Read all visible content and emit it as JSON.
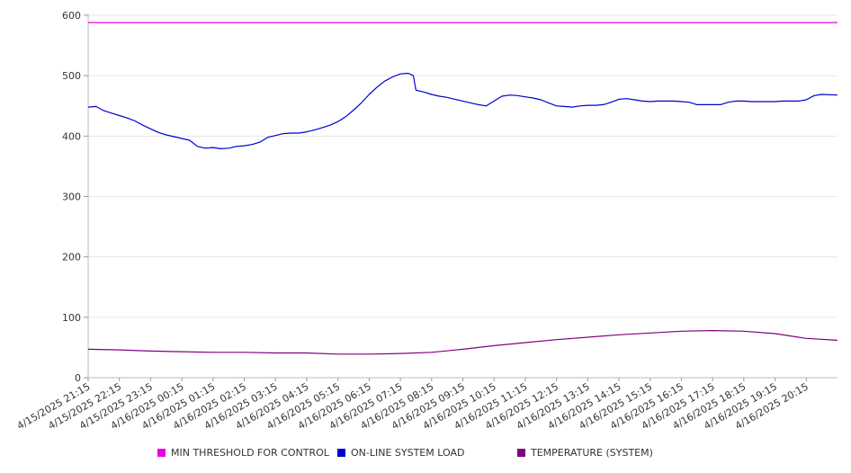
{
  "chart_data": {
    "type": "line",
    "title": "",
    "xlabel": "",
    "ylabel": "",
    "ylim": [
      0,
      600
    ],
    "y_ticks": [
      0,
      100,
      200,
      300,
      400,
      500,
      600
    ],
    "grid": true,
    "legend_position": "bottom",
    "x_tick_labels": [
      "4/15/2025 21:15",
      "4/15/2025 22:15",
      "4/15/2025 23:15",
      "4/16/2025 00:15",
      "4/16/2025 01:15",
      "4/16/2025 02:15",
      "4/16/2025 03:15",
      "4/16/2025 04:15",
      "4/16/2025 05:15",
      "4/16/2025 06:15",
      "4/16/2025 07:15",
      "4/16/2025 08:15",
      "4/16/2025 09:15",
      "4/16/2025 10:15",
      "4/16/2025 11:15",
      "4/16/2025 12:15",
      "4/16/2025 13:15",
      "4/16/2025 14:15",
      "4/16/2025 15:15",
      "4/16/2025 16:15",
      "4/16/2025 17:15",
      "4/16/2025 18:15",
      "4/16/2025 19:15",
      "4/16/2025 20:15"
    ],
    "x_start": "4/15/2025 21:15",
    "x_end": "4/16/2025 21:15",
    "series": [
      {
        "name": "MIN THRESHOLD FOR CONTROL",
        "color": "#e600e6",
        "points": [
          [
            "4/15/2025 21:15",
            588
          ],
          [
            "4/16/2025 21:15",
            588
          ]
        ]
      },
      {
        "name": "ON-LINE SYSTEM LOAD",
        "color": "#0000cc",
        "points": [
          [
            "4/15/2025 21:15",
            448
          ],
          [
            "4/15/2025 21:30",
            449
          ],
          [
            "4/15/2025 21:45",
            442
          ],
          [
            "4/15/2025 22:00",
            438
          ],
          [
            "4/15/2025 22:15",
            434
          ],
          [
            "4/15/2025 22:30",
            430
          ],
          [
            "4/15/2025 22:45",
            425
          ],
          [
            "4/15/2025 23:00",
            418
          ],
          [
            "4/15/2025 23:15",
            412
          ],
          [
            "4/15/2025 23:30",
            406
          ],
          [
            "4/15/2025 23:45",
            402
          ],
          [
            "4/16/2025 00:00",
            399
          ],
          [
            "4/16/2025 00:15",
            396
          ],
          [
            "4/16/2025 00:30",
            393
          ],
          [
            "4/16/2025 00:45",
            383
          ],
          [
            "4/16/2025 01:00",
            380
          ],
          [
            "4/16/2025 01:15",
            381
          ],
          [
            "4/16/2025 01:30",
            379
          ],
          [
            "4/16/2025 01:45",
            380
          ],
          [
            "4/16/2025 02:00",
            383
          ],
          [
            "4/16/2025 02:15",
            384
          ],
          [
            "4/16/2025 02:30",
            386
          ],
          [
            "4/16/2025 02:45",
            390
          ],
          [
            "4/16/2025 03:00",
            398
          ],
          [
            "4/16/2025 03:15",
            401
          ],
          [
            "4/16/2025 03:30",
            404
          ],
          [
            "4/16/2025 03:45",
            405
          ],
          [
            "4/16/2025 04:00",
            405
          ],
          [
            "4/16/2025 04:15",
            407
          ],
          [
            "4/16/2025 04:30",
            410
          ],
          [
            "4/16/2025 04:45",
            414
          ],
          [
            "4/16/2025 05:00",
            418
          ],
          [
            "4/16/2025 05:15",
            424
          ],
          [
            "4/16/2025 05:30",
            432
          ],
          [
            "4/16/2025 05:45",
            443
          ],
          [
            "4/16/2025 06:00",
            455
          ],
          [
            "4/16/2025 06:15",
            469
          ],
          [
            "4/16/2025 06:30",
            481
          ],
          [
            "4/16/2025 06:45",
            491
          ],
          [
            "4/16/2025 07:00",
            498
          ],
          [
            "4/16/2025 07:15",
            503
          ],
          [
            "4/16/2025 07:30",
            504
          ],
          [
            "4/16/2025 07:40",
            500
          ],
          [
            "4/16/2025 07:45",
            476
          ],
          [
            "4/16/2025 08:00",
            473
          ],
          [
            "4/16/2025 08:15",
            469
          ],
          [
            "4/16/2025 08:30",
            466
          ],
          [
            "4/16/2025 08:45",
            464
          ],
          [
            "4/16/2025 09:00",
            461
          ],
          [
            "4/16/2025 09:15",
            458
          ],
          [
            "4/16/2025 09:30",
            455
          ],
          [
            "4/16/2025 09:45",
            452
          ],
          [
            "4/16/2025 10:00",
            450
          ],
          [
            "4/16/2025 10:15",
            458
          ],
          [
            "4/16/2025 10:30",
            466
          ],
          [
            "4/16/2025 10:45",
            468
          ],
          [
            "4/16/2025 11:00",
            467
          ],
          [
            "4/16/2025 11:15",
            465
          ],
          [
            "4/16/2025 11:30",
            463
          ],
          [
            "4/16/2025 11:45",
            460
          ],
          [
            "4/16/2025 12:00",
            455
          ],
          [
            "4/16/2025 12:15",
            450
          ],
          [
            "4/16/2025 12:30",
            449
          ],
          [
            "4/16/2025 12:45",
            448
          ],
          [
            "4/16/2025 13:00",
            450
          ],
          [
            "4/16/2025 13:15",
            451
          ],
          [
            "4/16/2025 13:30",
            451
          ],
          [
            "4/16/2025 13:45",
            452
          ],
          [
            "4/16/2025 14:00",
            456
          ],
          [
            "4/16/2025 14:15",
            461
          ],
          [
            "4/16/2025 14:30",
            462
          ],
          [
            "4/16/2025 14:45",
            460
          ],
          [
            "4/16/2025 15:00",
            458
          ],
          [
            "4/16/2025 15:15",
            457
          ],
          [
            "4/16/2025 15:30",
            458
          ],
          [
            "4/16/2025 15:45",
            458
          ],
          [
            "4/16/2025 16:00",
            458
          ],
          [
            "4/16/2025 16:15",
            457
          ],
          [
            "4/16/2025 16:30",
            456
          ],
          [
            "4/16/2025 16:45",
            452
          ],
          [
            "4/16/2025 17:00",
            452
          ],
          [
            "4/16/2025 17:15",
            452
          ],
          [
            "4/16/2025 17:30",
            452
          ],
          [
            "4/16/2025 17:45",
            456
          ],
          [
            "4/16/2025 18:00",
            458
          ],
          [
            "4/16/2025 18:15",
            458
          ],
          [
            "4/16/2025 18:30",
            457
          ],
          [
            "4/16/2025 18:45",
            457
          ],
          [
            "4/16/2025 19:00",
            457
          ],
          [
            "4/16/2025 19:15",
            457
          ],
          [
            "4/16/2025 19:30",
            458
          ],
          [
            "4/16/2025 19:45",
            458
          ],
          [
            "4/16/2025 20:00",
            458
          ],
          [
            "4/16/2025 20:15",
            460
          ],
          [
            "4/16/2025 20:30",
            467
          ],
          [
            "4/16/2025 20:45",
            469
          ],
          [
            "4/16/2025 21:15",
            468
          ]
        ]
      },
      {
        "name": "TEMPERATURE (SYSTEM)",
        "color": "#800080",
        "points": [
          [
            "4/15/2025 21:15",
            47
          ],
          [
            "4/15/2025 22:15",
            46
          ],
          [
            "4/15/2025 23:15",
            44
          ],
          [
            "4/16/2025 00:15",
            43
          ],
          [
            "4/16/2025 01:15",
            42
          ],
          [
            "4/16/2025 02:15",
            42
          ],
          [
            "4/16/2025 03:15",
            41
          ],
          [
            "4/16/2025 04:15",
            41
          ],
          [
            "4/16/2025 05:15",
            39
          ],
          [
            "4/16/2025 06:15",
            39
          ],
          [
            "4/16/2025 07:15",
            40
          ],
          [
            "4/16/2025 08:15",
            42
          ],
          [
            "4/16/2025 09:15",
            47
          ],
          [
            "4/16/2025 10:15",
            53
          ],
          [
            "4/16/2025 11:15",
            58
          ],
          [
            "4/16/2025 12:15",
            63
          ],
          [
            "4/16/2025 13:15",
            67
          ],
          [
            "4/16/2025 14:15",
            71
          ],
          [
            "4/16/2025 15:15",
            74
          ],
          [
            "4/16/2025 16:15",
            77
          ],
          [
            "4/16/2025 17:15",
            78
          ],
          [
            "4/16/2025 18:15",
            77
          ],
          [
            "4/16/2025 19:15",
            73
          ],
          [
            "4/16/2025 20:15",
            65
          ],
          [
            "4/16/2025 21:15",
            62
          ]
        ]
      }
    ]
  }
}
